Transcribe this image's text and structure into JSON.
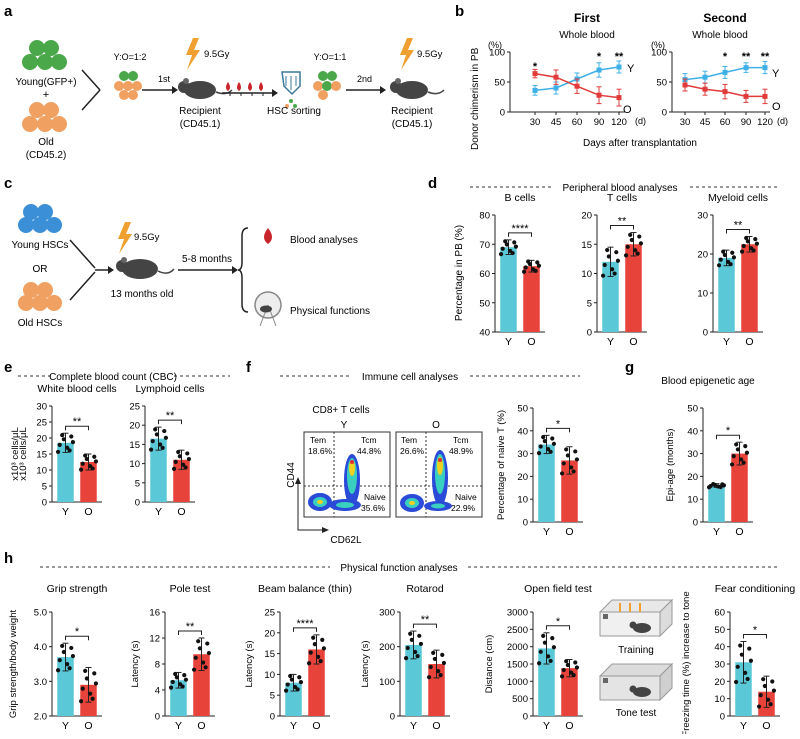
{
  "colors": {
    "young": "#5bc8d8",
    "old": "#e8433a",
    "line_young": "#3fb0e6",
    "line_old": "#e03a3a",
    "green": "#4aa84a",
    "orange": "#f0a060",
    "blue": "#3b8fd6",
    "bolt": "#f0a030",
    "drop": "#c8262c"
  },
  "panels": {
    "a": {
      "letter": "a",
      "young_label": "Young(GFP+)",
      "plus": "+",
      "old_label": "Old",
      "old_id": "(CD45.2)",
      "ratio1": "Y:O=1:2",
      "first": "1st",
      "dose1": "9.5Gy",
      "recipient1": "Recipient",
      "recipient1_id": "(CD45.1)",
      "sorting": "HSC sorting",
      "ratio2": "Y:O=1:1",
      "second": "2nd",
      "dose2": "9.5Gy",
      "recipient2": "Recipient",
      "recipient2_id": "(CD45.1)"
    },
    "b": {
      "letter": "b",
      "ylabel": "Donor chimerism in PB",
      "yunit": "(%)",
      "xunit": "(d)",
      "xlabel": "Days after transplantation",
      "title_first": "First",
      "title_second": "Second",
      "subtitle": "Whole blood",
      "label_y": "Y",
      "label_o": "O"
    },
    "c": {
      "letter": "c",
      "young_hsc": "Young HSCs",
      "or": "OR",
      "old_hsc": "Old HSCs",
      "dose": "9.5Gy",
      "age": "13 months old",
      "duration": "5-8 months",
      "blood": "Blood analyses",
      "physical": "Physical functions"
    },
    "d": {
      "letter": "d",
      "header": "Peripheral blood analyses",
      "ylabel": "Percentage in PB (%)"
    },
    "e": {
      "letter": "e",
      "header": "Complete blood count (CBC)",
      "ylabel": "x10³ cells/μL"
    },
    "f": {
      "letter": "f",
      "header": "Immune cell analyses",
      "flow_title": "CD8+ T cells",
      "flow_y": "Y",
      "flow_o": "O",
      "axis_y": "CD44",
      "axis_x": "CD62L",
      "y_tem": "Tem",
      "y_tem_val": "18.6%",
      "y_tcm": "Tcm",
      "y_tcm_val": "44.8%",
      "y_naive": "Naive",
      "y_naive_val": "35.6%",
      "o_tem": "Tem",
      "o_tem_val": "26.6%",
      "o_tcm": "Tcm",
      "o_tcm_val": "48.9%",
      "o_naive": "Naive",
      "o_naive_val": "22.9%"
    },
    "g": {
      "letter": "g",
      "header": "Blood epigenetic age"
    },
    "h": {
      "letter": "h",
      "header": "Physical function analyses",
      "training": "Training",
      "tone": "Tone test"
    }
  },
  "chart_data": [
    {
      "id": "b1",
      "type": "line",
      "title": "First",
      "subtitle": "Whole blood",
      "ylabel": "Donor chimerism in PB",
      "xlabel": "Days after transplantation",
      "x": [
        30,
        45,
        60,
        90,
        120
      ],
      "xticks": [
        "30",
        "45",
        "60",
        "90",
        "120"
      ],
      "ylim": [
        0,
        100
      ],
      "yticks": [
        0,
        50,
        100
      ],
      "series": [
        {
          "name": "Y",
          "values": [
            36,
            40,
            55,
            70,
            75
          ],
          "err": [
            8,
            10,
            10,
            12,
            10
          ]
        },
        {
          "name": "O",
          "values": [
            64,
            58,
            43,
            28,
            24
          ],
          "err": [
            7,
            12,
            12,
            14,
            14
          ]
        }
      ],
      "sig": [
        {
          "x": 30,
          "label": "*"
        },
        {
          "x": 90,
          "label": "*"
        },
        {
          "x": 120,
          "label": "**"
        }
      ]
    },
    {
      "id": "b2",
      "type": "line",
      "title": "Second",
      "subtitle": "Whole blood",
      "xlabel": "Days after transplantation",
      "x": [
        30,
        45,
        60,
        90,
        120
      ],
      "xticks": [
        "30",
        "45",
        "60",
        "90",
        "120"
      ],
      "ylim": [
        0,
        100
      ],
      "yticks": [
        0,
        50,
        100
      ],
      "series": [
        {
          "name": "Y",
          "values": [
            54,
            58,
            66,
            74,
            74
          ],
          "err": [
            10,
            10,
            10,
            8,
            10
          ]
        },
        {
          "name": "O",
          "values": [
            45,
            38,
            34,
            26,
            26
          ],
          "err": [
            10,
            10,
            12,
            10,
            12
          ]
        }
      ],
      "sig": [
        {
          "x": 60,
          "label": "*"
        },
        {
          "x": 90,
          "label": "**"
        },
        {
          "x": 120,
          "label": "**"
        }
      ]
    },
    {
      "id": "d1",
      "type": "bar",
      "title": "B cells",
      "ylabel": "Percentage in PB (%)",
      "categories": [
        "Y",
        "O"
      ],
      "values": [
        69,
        62.5
      ],
      "err": [
        2.5,
        2
      ],
      "ylim": [
        40,
        80
      ],
      "yticks": [
        40,
        50,
        60,
        70,
        80
      ],
      "sig": "****"
    },
    {
      "id": "d2",
      "type": "bar",
      "title": "T cells",
      "categories": [
        "Y",
        "O"
      ],
      "values": [
        12,
        15
      ],
      "err": [
        2.5,
        2
      ],
      "ylim": [
        0,
        20
      ],
      "yticks": [
        0,
        5,
        10,
        15,
        20
      ],
      "sig": "**"
    },
    {
      "id": "d3",
      "type": "bar",
      "title": "Myeloid cells",
      "categories": [
        "Y",
        "O"
      ],
      "values": [
        19,
        22.5
      ],
      "err": [
        2,
        2
      ],
      "ylim": [
        0,
        30
      ],
      "yticks": [
        0,
        10,
        20,
        30
      ],
      "sig": "**"
    },
    {
      "id": "e1",
      "type": "bar",
      "title": "White blood cells",
      "ylabel": "x10³ cells/μL",
      "categories": [
        "Y",
        "O"
      ],
      "values": [
        18.5,
        12.5
      ],
      "err": [
        3,
        2.5
      ],
      "ylim": [
        0,
        30
      ],
      "yticks": [
        0,
        5,
        10,
        15,
        20,
        25,
        30
      ],
      "sig": "**"
    },
    {
      "id": "e2",
      "type": "bar",
      "title": "Lymphoid cells",
      "categories": [
        "Y",
        "O"
      ],
      "values": [
        16.5,
        11
      ],
      "err": [
        3,
        2.5
      ],
      "ylim": [
        0,
        25
      ],
      "yticks": [
        0,
        5,
        10,
        15,
        20,
        25
      ],
      "sig": "**"
    },
    {
      "id": "f1",
      "type": "bar",
      "title": "",
      "ylabel": "Percentage of naive T (%)",
      "categories": [
        "Y",
        "O"
      ],
      "values": [
        34,
        27
      ],
      "err": [
        4,
        6
      ],
      "ylim": [
        0,
        50
      ],
      "yticks": [
        0,
        10,
        20,
        30,
        40,
        50
      ],
      "sig": "*"
    },
    {
      "id": "g1",
      "type": "bar",
      "title": "",
      "ylabel": "Epi-age (months)",
      "categories": [
        "Y",
        "O"
      ],
      "values": [
        16,
        30
      ],
      "err": [
        0.8,
        5
      ],
      "ylim": [
        0,
        50
      ],
      "yticks": [
        0,
        10,
        20,
        30,
        40,
        50
      ],
      "sig": "*"
    },
    {
      "id": "h1",
      "type": "bar",
      "title": "Grip strength",
      "ylabel": "Grip strength/body weight",
      "categories": [
        "Y",
        "O"
      ],
      "values": [
        3.7,
        2.9
      ],
      "err": [
        0.4,
        0.5
      ],
      "ylim": [
        2.0,
        5.0
      ],
      "yticks": [
        2.0,
        3.0,
        4.0,
        5.0
      ],
      "yfmt": 1,
      "sig": "*"
    },
    {
      "id": "h2",
      "type": "bar",
      "title": "Pole test",
      "ylabel": "Latency (s)",
      "categories": [
        "Y",
        "O"
      ],
      "values": [
        5.5,
        9.5
      ],
      "err": [
        1.2,
        2.5
      ],
      "ylim": [
        0,
        16
      ],
      "yticks": [
        0,
        4,
        8,
        12,
        16
      ],
      "sig": "**"
    },
    {
      "id": "h3",
      "type": "bar",
      "title": "Beam balance (thin)",
      "ylabel": "Latency (s)",
      "categories": [
        "Y",
        "O"
      ],
      "values": [
        8,
        16
      ],
      "err": [
        2,
        3.5
      ],
      "ylim": [
        0,
        25
      ],
      "yticks": [
        0,
        5,
        10,
        15,
        20,
        25
      ],
      "sig": "****"
    },
    {
      "id": "h4",
      "type": "bar",
      "title": "Rotarod",
      "ylabel": "Latency (s)",
      "categories": [
        "Y",
        "O"
      ],
      "values": [
        205,
        150
      ],
      "err": [
        40,
        40
      ],
      "ylim": [
        0,
        300
      ],
      "yticks": [
        0,
        100,
        200,
        300
      ],
      "sig": "**"
    },
    {
      "id": "h5",
      "type": "bar",
      "title": "Open field test",
      "ylabel": "Distance (cm)",
      "categories": [
        "Y",
        "O"
      ],
      "values": [
        1950,
        1380
      ],
      "err": [
        450,
        250
      ],
      "ylim": [
        0,
        3000
      ],
      "yticks": [
        0,
        500,
        1000,
        1500,
        2000,
        2500,
        3000
      ],
      "sig": "*"
    },
    {
      "id": "h6",
      "type": "bar",
      "title": "Fear conditioning",
      "ylabel": "Freezing time (%) increase to tone",
      "categories": [
        "Y",
        "O"
      ],
      "values": [
        31,
        14
      ],
      "err": [
        12,
        9
      ],
      "ylim": [
        0,
        60
      ],
      "yticks": [
        0,
        10,
        20,
        30,
        40,
        50,
        60
      ],
      "sig": "*"
    }
  ]
}
